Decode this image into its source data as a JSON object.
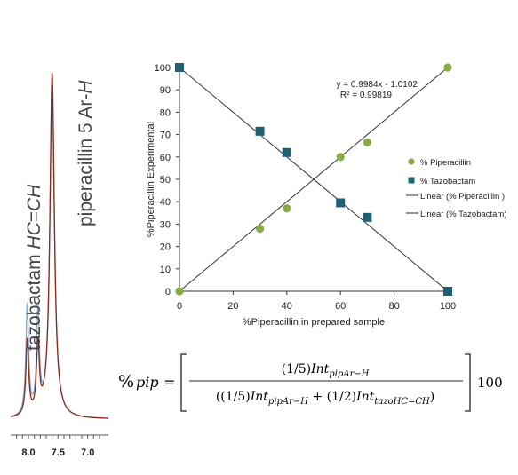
{
  "chart_data": [
    {
      "type": "scatter",
      "title": "",
      "xlabel": "%Piperacillin in prepared sample",
      "ylabel": "%Piperacillin Experimental",
      "xlim": [
        0,
        100
      ],
      "ylim": [
        0,
        100
      ],
      "xticks": [
        "0",
        "20",
        "40",
        "60",
        "80",
        "100"
      ],
      "yticks": [
        "0",
        "10",
        "20",
        "30",
        "40",
        "50",
        "60",
        "70",
        "80",
        "90",
        "100"
      ],
      "grid": false,
      "legend_position": "right",
      "series": [
        {
          "name": "% Piperacillin",
          "marker": "circle",
          "color": "#8aab45",
          "points": [
            [
              0,
              0
            ],
            [
              30,
              28
            ],
            [
              40,
              37
            ],
            [
              60,
              60
            ],
            [
              70,
              66.5
            ],
            [
              100,
              100
            ]
          ]
        },
        {
          "name": "% Tazobactam",
          "marker": "square",
          "color": "#1f5f73",
          "points": [
            [
              0,
              100
            ],
            [
              30,
              71.5
            ],
            [
              40,
              62
            ],
            [
              60,
              39.5
            ],
            [
              70,
              33
            ],
            [
              100,
              0
            ]
          ]
        }
      ],
      "trendlines": [
        {
          "name": "Linear (% Piperacillin )",
          "from": [
            0,
            0
          ],
          "to": [
            100,
            100
          ]
        },
        {
          "name": "Linear (% Tazobactam)",
          "from": [
            0,
            100
          ],
          "to": [
            100,
            0
          ]
        }
      ],
      "annotations": [
        "y = 0.9984x - 1.0102",
        "R² = 0.99819"
      ]
    },
    {
      "type": "line",
      "title": "",
      "xlabel": "",
      "ylabel": "",
      "xticks": [
        "8.0",
        "7.5",
        "7.0"
      ],
      "xlim": [
        8.3,
        6.65
      ],
      "axis_reversed": true,
      "peak_labels": [
        "tazobactam HC=CH",
        "piperacillin 5 Ar-H"
      ],
      "series": [
        {
          "name": "",
          "color": "#8b2a1a",
          "peaks": [
            {
              "ppm": 8.02,
              "height": 0.22
            },
            {
              "ppm": 7.84,
              "height": 0.2
            },
            {
              "ppm": 7.6,
              "height": 1.0
            }
          ]
        },
        {
          "name": "",
          "color": "#7fa8d9",
          "peaks": [
            {
              "ppm": 8.02,
              "height": 0.32
            },
            {
              "ppm": 7.84,
              "height": 0.29
            },
            {
              "ppm": 7.6,
              "height": 0.96
            }
          ]
        }
      ]
    }
  ],
  "formula": {
    "lhs_symbol": "%",
    "lhs_var": "pip",
    "equals": "=",
    "num_coef": "(1/5)",
    "num_int": "Int",
    "num_sub": "pipAr−H",
    "den_open": "((1/5)",
    "den_int1": "Int",
    "den_sub1": "pipAr−H",
    "den_plus": " + (1/2)",
    "den_int2": "Int",
    "den_sub2": "tazoHC=CH",
    "den_close": ")",
    "multiplier": "100"
  }
}
